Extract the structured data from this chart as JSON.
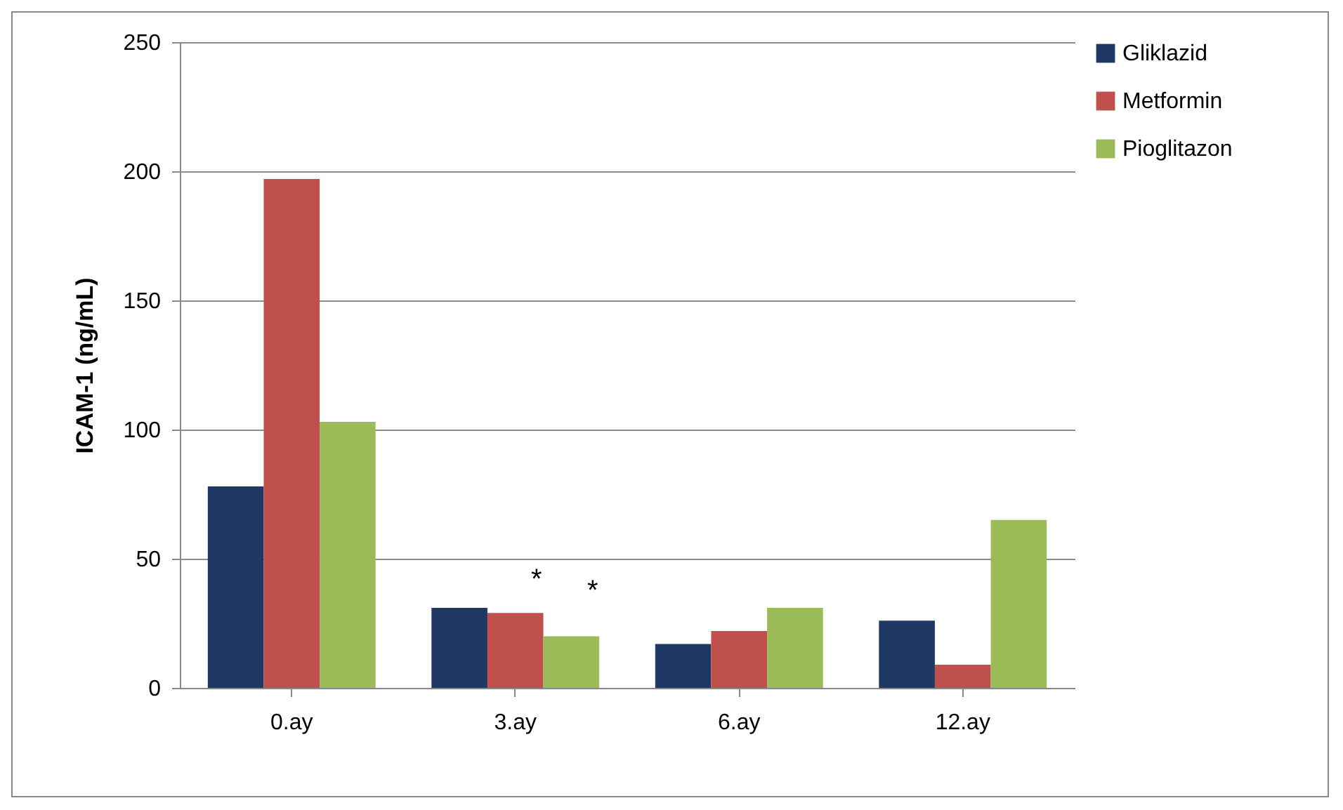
{
  "chart_data": {
    "type": "bar",
    "ylabel": "ICAM-1 (ng/mL)",
    "categories": [
      "0.ay",
      "3.ay",
      "6.ay",
      "12.ay"
    ],
    "series": [
      {
        "name": "Gliklazid",
        "color": "#1f3864",
        "values": [
          78,
          31,
          17,
          26
        ]
      },
      {
        "name": "Metformin",
        "color": "#c0504d",
        "values": [
          197,
          29,
          22,
          9
        ]
      },
      {
        "name": "Pioglitazon",
        "color": "#9bbb59",
        "values": [
          103,
          20,
          31,
          65
        ]
      }
    ],
    "ylim": [
      0,
      250
    ],
    "yticks": [
      0,
      50,
      100,
      150,
      200,
      250
    ],
    "grid": "y",
    "legend": "right",
    "annotations": [
      "*",
      "*"
    ]
  }
}
